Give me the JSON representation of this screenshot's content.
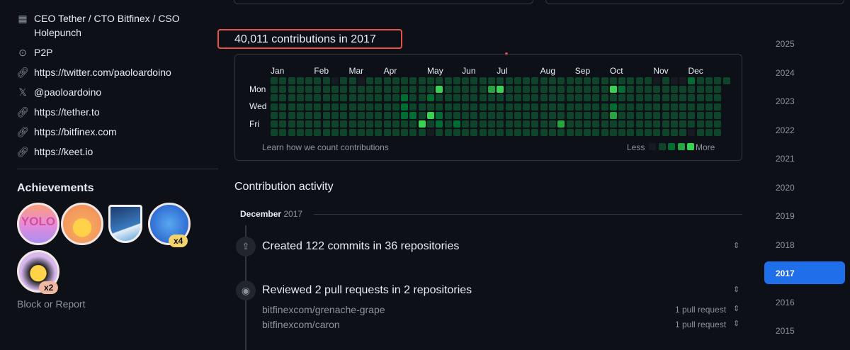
{
  "profile": {
    "company": "CEO Tether / CTO Bitfinex / CSO",
    "company_line2": "Holepunch",
    "location": "P2P",
    "links": [
      {
        "icon": "link-icon",
        "text": "https://twitter.com/paoloardoino"
      },
      {
        "icon": "x-logo-icon",
        "text": "@paoloardoino"
      },
      {
        "icon": "link-icon",
        "text": "https://tether.to"
      },
      {
        "icon": "link-icon",
        "text": "https://bitfinex.com"
      },
      {
        "icon": "link-icon",
        "text": "https://keet.io"
      }
    ],
    "achievements_title": "Achievements",
    "achievements": [
      {
        "name": "yolo",
        "count": ""
      },
      {
        "name": "quickdraw",
        "count": ""
      },
      {
        "name": "arctic-code-vault",
        "count": ""
      },
      {
        "name": "pull-shark",
        "count": "x4"
      },
      {
        "name": "starstruck",
        "count": "x2"
      }
    ],
    "block_report": "Block or Report"
  },
  "contributions": {
    "heading": "40,011 contributions in 2017",
    "months": [
      {
        "label": "Jan",
        "week": 0
      },
      {
        "label": "Feb",
        "week": 5
      },
      {
        "label": "Mar",
        "week": 9
      },
      {
        "label": "Apr",
        "week": 13
      },
      {
        "label": "May",
        "week": 18
      },
      {
        "label": "Jun",
        "week": 22
      },
      {
        "label": "Jul",
        "week": 26
      },
      {
        "label": "Aug",
        "week": 31
      },
      {
        "label": "Sep",
        "week": 35
      },
      {
        "label": "Oct",
        "week": 39
      },
      {
        "label": "Nov",
        "week": 44
      },
      {
        "label": "Dec",
        "week": 48
      }
    ],
    "days": [
      "Mon",
      "Wed",
      "Fri"
    ],
    "weeks": 53,
    "default_level": 1,
    "level_overrides": [
      {
        "week": 7,
        "day": 0,
        "level": 0
      },
      {
        "week": 10,
        "day": 0,
        "level": 0
      },
      {
        "week": 44,
        "day": 0,
        "level": 0
      },
      {
        "week": 46,
        "day": 0,
        "level": 0
      },
      {
        "week": 47,
        "day": 0,
        "level": 0
      },
      {
        "week": 48,
        "day": 0,
        "level": 2
      },
      {
        "week": 19,
        "day": 1,
        "level": 4
      },
      {
        "week": 25,
        "day": 1,
        "level": 3
      },
      {
        "week": 26,
        "day": 1,
        "level": 4
      },
      {
        "week": 39,
        "day": 1,
        "level": 4
      },
      {
        "week": 40,
        "day": 1,
        "level": 2
      },
      {
        "week": 15,
        "day": 2,
        "level": 2
      },
      {
        "week": 18,
        "day": 2,
        "level": 2
      },
      {
        "week": 15,
        "day": 3,
        "level": 2
      },
      {
        "week": 39,
        "day": 3,
        "level": 2
      },
      {
        "week": 15,
        "day": 4,
        "level": 2
      },
      {
        "week": 16,
        "day": 4,
        "level": 2
      },
      {
        "week": 18,
        "day": 4,
        "level": 4
      },
      {
        "week": 19,
        "day": 4,
        "level": 2
      },
      {
        "week": 39,
        "day": 4,
        "level": 3
      },
      {
        "week": 17,
        "day": 5,
        "level": 4
      },
      {
        "week": 19,
        "day": 5,
        "level": 2
      },
      {
        "week": 21,
        "day": 5,
        "level": 2
      },
      {
        "week": 33,
        "day": 5,
        "level": 3
      },
      {
        "week": 18,
        "day": 6,
        "level": 0
      },
      {
        "week": 48,
        "day": 6,
        "level": 0
      }
    ],
    "level_colors": [
      "#161b22",
      "#0e4429",
      "#006d32",
      "#26a641",
      "#39d353"
    ],
    "learn_link": "Learn how we count contributions",
    "legend_less": "Less",
    "legend_more": "More"
  },
  "activity": {
    "title": "Contribution activity",
    "month": "December",
    "year": "2017",
    "items": [
      {
        "icon": "repo-push-icon",
        "text": "Created 122 commits in 36 repositories",
        "repos": []
      },
      {
        "icon": "eye-icon",
        "text": "Reviewed 2 pull requests in 2 repositories",
        "repos": [
          {
            "name": "bitfinexcom/grenache-grape",
            "count": "1 pull request"
          },
          {
            "name": "bitfinexcom/caron",
            "count": "1 pull request"
          }
        ]
      }
    ]
  },
  "years": [
    "2025",
    "2024",
    "2023",
    "2022",
    "2021",
    "2020",
    "2019",
    "2018",
    "2017",
    "2016",
    "2015"
  ],
  "selected_year": "2017",
  "accent": "#1f6feb"
}
